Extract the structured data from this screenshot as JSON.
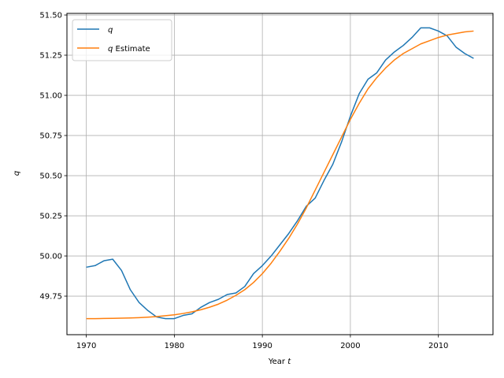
{
  "chart_data": {
    "type": "line",
    "xlabel_prefix": "Year",
    "xlabel_var": "t",
    "ylabel": "q",
    "xlim": [
      1967.8,
      2016.2
    ],
    "ylim": [
      49.51,
      51.51
    ],
    "x_ticks": [
      1970,
      1980,
      1990,
      2000,
      2010
    ],
    "y_ticks": [
      49.75,
      50.0,
      50.25,
      50.5,
      50.75,
      51.0,
      51.25,
      51.5
    ],
    "grid": true,
    "legend_position": "top-left",
    "series": [
      {
        "name_var": "q",
        "name_suffix": "",
        "color": "#1f77b4",
        "x": [
          1970,
          1971,
          1972,
          1973,
          1974,
          1975,
          1976,
          1977,
          1978,
          1979,
          1980,
          1981,
          1982,
          1983,
          1984,
          1985,
          1986,
          1987,
          1988,
          1989,
          1990,
          1991,
          1992,
          1993,
          1994,
          1995,
          1996,
          1997,
          1998,
          1999,
          2000,
          2001,
          2002,
          2003,
          2004,
          2005,
          2006,
          2007,
          2008,
          2009,
          2010,
          2011,
          2012,
          2013,
          2014
        ],
        "y": [
          49.93,
          49.94,
          49.97,
          49.98,
          49.91,
          49.79,
          49.71,
          49.66,
          49.62,
          49.61,
          49.61,
          49.63,
          49.64,
          49.68,
          49.71,
          49.73,
          49.76,
          49.77,
          49.81,
          49.89,
          49.94,
          50.0,
          50.07,
          50.14,
          50.22,
          50.31,
          50.36,
          50.47,
          50.57,
          50.71,
          50.87,
          51.01,
          51.1,
          51.14,
          51.22,
          51.27,
          51.31,
          51.36,
          51.42,
          51.42,
          51.4,
          51.37,
          51.3,
          51.26,
          51.23
        ]
      },
      {
        "name_var": "q",
        "name_suffix": " Estimate",
        "color": "#ff7f0e",
        "x": [
          1970,
          1971,
          1972,
          1973,
          1974,
          1975,
          1976,
          1977,
          1978,
          1979,
          1980,
          1981,
          1982,
          1983,
          1984,
          1985,
          1986,
          1987,
          1988,
          1989,
          1990,
          1991,
          1992,
          1993,
          1994,
          1995,
          1996,
          1997,
          1998,
          1999,
          2000,
          2001,
          2002,
          2003,
          2004,
          2005,
          2006,
          2007,
          2008,
          2009,
          2010,
          2011,
          2012,
          2013,
          2014
        ],
        "y": [
          49.61,
          49.61,
          49.611,
          49.612,
          49.613,
          49.614,
          49.616,
          49.619,
          49.623,
          49.628,
          49.634,
          49.642,
          49.652,
          49.665,
          49.681,
          49.7,
          49.725,
          49.755,
          49.79,
          49.835,
          49.89,
          49.955,
          50.03,
          50.11,
          50.2,
          50.3,
          50.41,
          50.52,
          50.63,
          50.74,
          50.85,
          50.95,
          51.04,
          51.11,
          51.17,
          51.22,
          51.26,
          51.29,
          51.32,
          51.34,
          51.36,
          51.375,
          51.385,
          51.395,
          51.4
        ]
      }
    ]
  }
}
